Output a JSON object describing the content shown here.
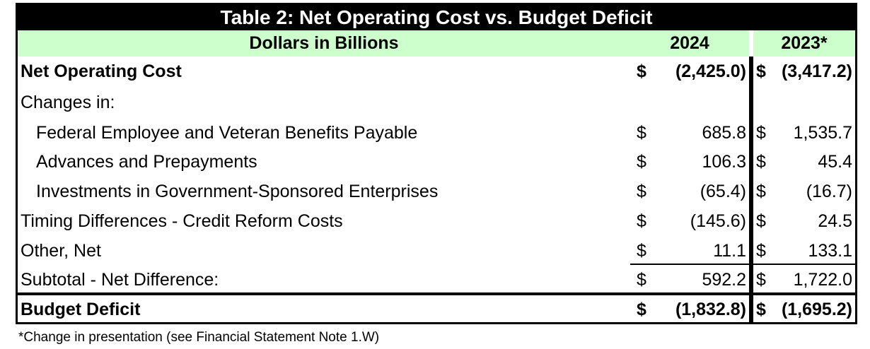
{
  "table": {
    "title": "Table 2:  Net Operating Cost vs. Budget Deficit",
    "header": {
      "label": "Dollars in Billions",
      "col1": "2024",
      "col2": "2023*"
    },
    "rows": [
      {
        "label": "Net Operating Cost",
        "d1": "$",
        "v1": "(2,425.0)",
        "d2": "$",
        "v2": "(3,417.2)",
        "bold": true,
        "indent": false
      },
      {
        "label": "Changes in:",
        "d1": "",
        "v1": "",
        "d2": "",
        "v2": "",
        "bold": false,
        "indent": false
      },
      {
        "label": "Federal Employee and Veteran Benefits Payable",
        "d1": "$",
        "v1": "685.8",
        "d2": "$",
        "v2": "1,535.7",
        "bold": false,
        "indent": true
      },
      {
        "label": "Advances and Prepayments",
        "d1": "$",
        "v1": "106.3",
        "d2": "$",
        "v2": "45.4",
        "bold": false,
        "indent": true
      },
      {
        "label": "Investments in Government-Sponsored Enterprises",
        "d1": "$",
        "v1": "(65.4)",
        "d2": "$",
        "v2": "(16.7)",
        "bold": false,
        "indent": true
      },
      {
        "label": "Timing Differences - Credit Reform Costs",
        "d1": "$",
        "v1": "(145.6)",
        "d2": "$",
        "v2": "24.5",
        "bold": false,
        "indent": false
      },
      {
        "label": "Other, Net",
        "d1": "$",
        "v1": "11.1",
        "d2": "$",
        "v2": "133.1",
        "bold": false,
        "indent": false
      },
      {
        "label": "Subtotal - Net Difference:",
        "d1": "$",
        "v1": "592.2",
        "d2": "$",
        "v2": "1,722.0",
        "bold": false,
        "indent": false
      },
      {
        "label": "Budget Deficit",
        "d1": "$",
        "v1": "(1,832.8)",
        "d2": "$",
        "v2": "(1,695.2)",
        "bold": true,
        "indent": false
      }
    ]
  },
  "footnote": "*Change in presentation  (see Financial Statement Note 1.W)"
}
